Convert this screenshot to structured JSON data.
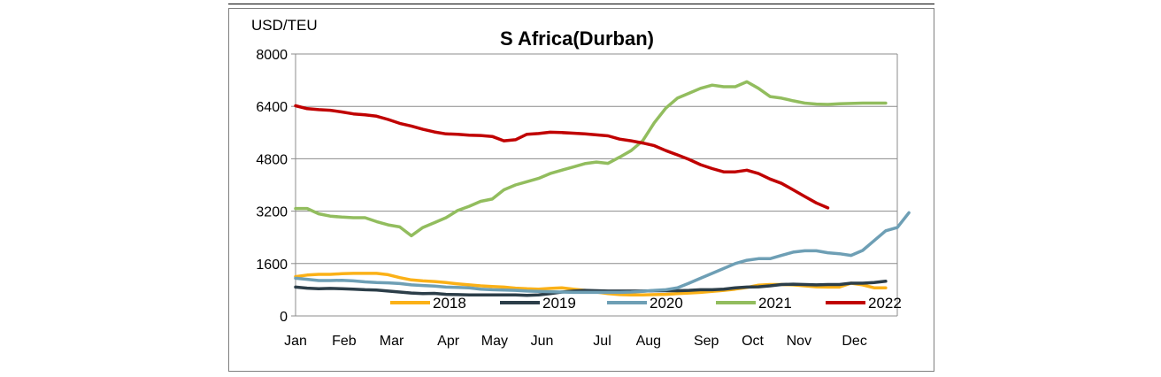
{
  "chart_data": {
    "type": "line",
    "title": "S Africa(Durban)",
    "ylabel": "USD/TEU",
    "xlabel": "",
    "ylim": [
      0,
      8000
    ],
    "yticks": [
      0,
      1600,
      3200,
      4800,
      6400,
      8000
    ],
    "ytick_labels": [
      "0",
      "1600",
      "3200",
      "4800",
      "6400",
      "8000"
    ],
    "xlim": [
      0,
      52
    ],
    "month_labels": [
      "Jan",
      "Feb",
      "Mar",
      "Apr",
      "May",
      "Jun",
      "Jul",
      "Aug",
      "Sep",
      "Oct",
      "Nov",
      "Dec"
    ],
    "month_positions": [
      0,
      4.2,
      8.3,
      13.2,
      17.2,
      21.3,
      26.5,
      30.5,
      35.5,
      39.5,
      43.5,
      48.3
    ],
    "legend_position": "bottom-inside",
    "series": [
      {
        "name": "2018",
        "color": "#fbb117",
        "values": [
          1200,
          1250,
          1270,
          1270,
          1290,
          1300,
          1300,
          1300,
          1260,
          1170,
          1100,
          1070,
          1050,
          1020,
          980,
          950,
          920,
          900,
          880,
          850,
          830,
          820,
          840,
          860,
          820,
          780,
          730,
          680,
          650,
          640,
          640,
          650,
          660,
          680,
          700,
          720,
          750,
          780,
          820,
          870,
          940,
          960,
          960,
          950,
          920,
          890,
          880,
          880,
          1000,
          950,
          860,
          860
        ]
      },
      {
        "name": "2019",
        "color": "#2c3e49",
        "values": [
          880,
          850,
          830,
          840,
          830,
          820,
          800,
          790,
          760,
          730,
          700,
          680,
          690,
          660,
          650,
          640,
          640,
          640,
          640,
          640,
          630,
          640,
          680,
          730,
          760,
          780,
          770,
          760,
          760,
          760,
          760,
          770,
          770,
          770,
          780,
          800,
          800,
          820,
          860,
          880,
          890,
          920,
          960,
          970,
          960,
          950,
          960,
          960,
          1000,
          1000,
          1020,
          1060
        ]
      },
      {
        "name": "2020",
        "color": "#6e9fb5",
        "values": [
          1150,
          1120,
          1080,
          1080,
          1090,
          1070,
          1040,
          1020,
          1010,
          990,
          950,
          930,
          910,
          880,
          870,
          860,
          820,
          800,
          790,
          780,
          760,
          750,
          740,
          730,
          720,
          720,
          720,
          720,
          720,
          730,
          750,
          780,
          800,
          860,
          1000,
          1150,
          1300,
          1450,
          1600,
          1700,
          1750,
          1750,
          1850,
          1950,
          1990,
          1990,
          1930,
          1900,
          1850,
          2000,
          2300,
          2600,
          2700,
          3150
        ]
      },
      {
        "name": "2021",
        "color": "#92bd5e",
        "values": [
          3280,
          3280,
          3120,
          3050,
          3020,
          3000,
          3000,
          2880,
          2780,
          2720,
          2450,
          2700,
          2850,
          3000,
          3220,
          3350,
          3500,
          3570,
          3850,
          4000,
          4100,
          4200,
          4350,
          4450,
          4550,
          4650,
          4700,
          4660,
          4850,
          5050,
          5350,
          5900,
          6350,
          6650,
          6800,
          6950,
          7050,
          7000,
          7000,
          7150,
          6950,
          6700,
          6650,
          6570,
          6500,
          6470,
          6460,
          6480,
          6490,
          6500,
          6500,
          6500
        ]
      },
      {
        "name": "2022",
        "color": "#c00000",
        "values": [
          6420,
          6330,
          6300,
          6280,
          6230,
          6170,
          6140,
          6100,
          6000,
          5880,
          5800,
          5700,
          5620,
          5560,
          5550,
          5520,
          5510,
          5480,
          5350,
          5380,
          5550,
          5570,
          5610,
          5600,
          5580,
          5560,
          5530,
          5500,
          5400,
          5350,
          5280,
          5200,
          5050,
          4920,
          4780,
          4620,
          4500,
          4400,
          4400,
          4450,
          4350,
          4180,
          4050,
          3850,
          3650,
          3450,
          3300
        ]
      }
    ]
  }
}
